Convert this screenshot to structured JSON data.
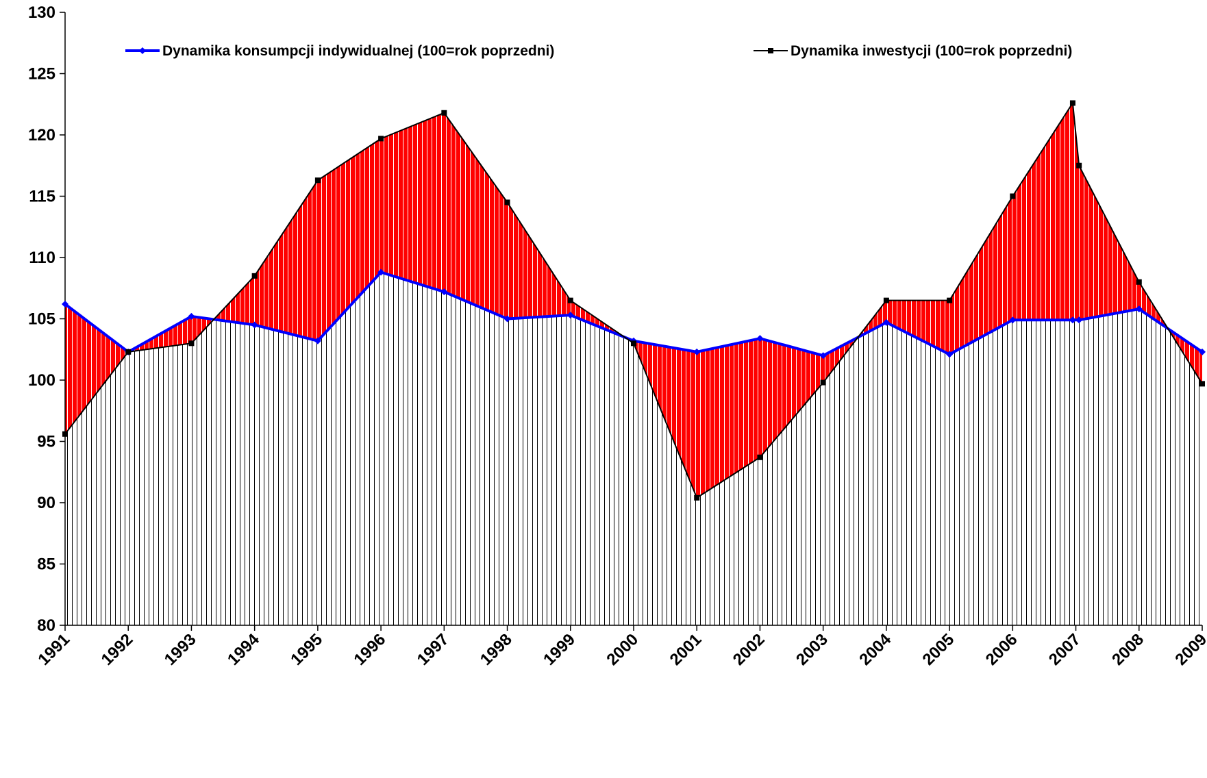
{
  "chart_data": {
    "type": "line",
    "x": [
      1991,
      1992,
      1993,
      1994,
      1995,
      1996,
      1997,
      1998,
      1999,
      2000,
      2001,
      2002,
      2003,
      2004,
      2005,
      2006,
      2006.95,
      2007.05,
      2008,
      2009
    ],
    "series": [
      {
        "name": "Dynamika konsumpcji indywidualnej (100=rok poprzedni)",
        "color": "#0000ff",
        "values": [
          106.2,
          102.3,
          105.2,
          104.5,
          103.2,
          108.8,
          107.2,
          105.0,
          105.3,
          103.2,
          102.3,
          103.4,
          102.0,
          104.7,
          102.1,
          104.9,
          104.9,
          104.9,
          105.8,
          102.3
        ]
      },
      {
        "name": "Dynamika inwestycji (100=rok poprzedni)",
        "color": "#000000",
        "values": [
          95.6,
          102.3,
          103.0,
          108.5,
          116.3,
          119.7,
          121.8,
          114.5,
          106.5,
          103.0,
          90.4,
          93.7,
          99.8,
          106.5,
          106.5,
          115.0,
          122.6,
          117.5,
          108.0,
          99.7
        ]
      }
    ],
    "fill_between_color": "#ff0000",
    "xlim": [
      1991,
      2009
    ],
    "xticks": [
      1991,
      1992,
      1993,
      1994,
      1995,
      1996,
      1997,
      1998,
      1999,
      2000,
      2001,
      2002,
      2003,
      2004,
      2005,
      2006,
      2007,
      2008,
      2009
    ],
    "ylim": [
      80,
      130
    ],
    "yticks": [
      80,
      85,
      90,
      95,
      100,
      105,
      110,
      115,
      120,
      125,
      130
    ]
  }
}
